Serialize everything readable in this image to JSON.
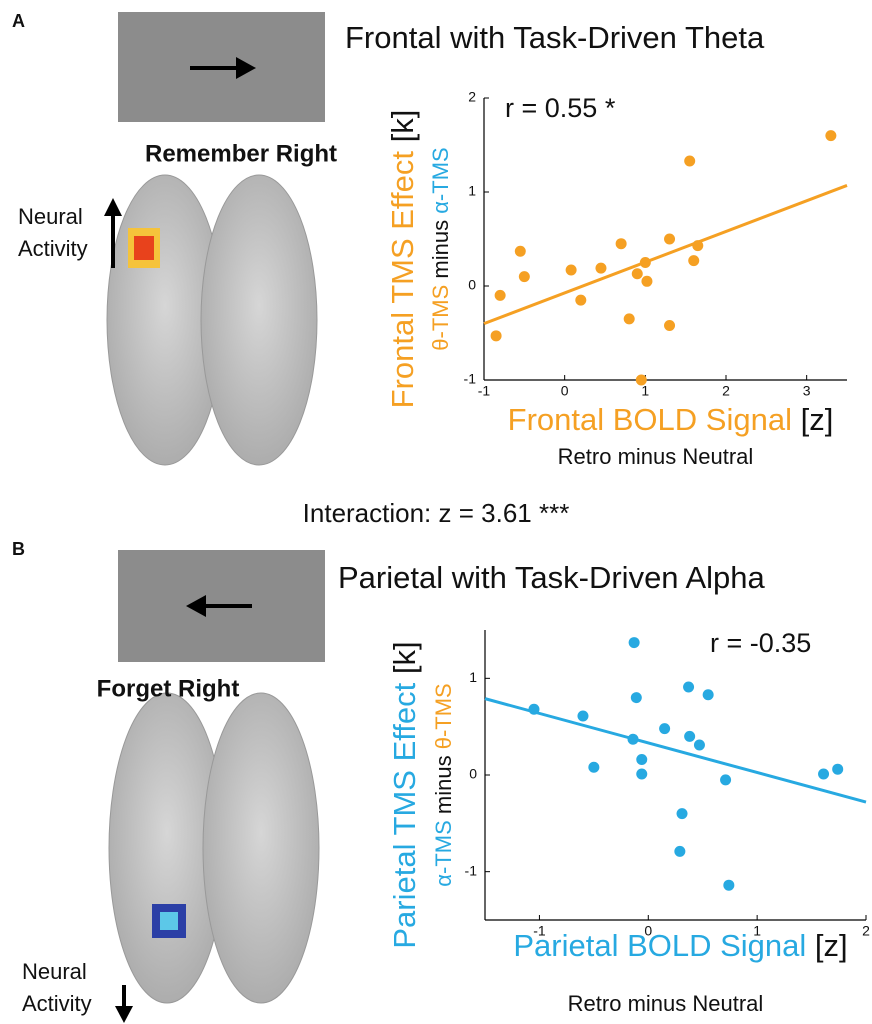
{
  "figure": {
    "interaction": "Interaction: z = 3.61 ***",
    "panels": [
      {
        "label": "A",
        "cue": "Remember Right",
        "cue_color": "#f5a023",
        "activity": [
          "Neural",
          "Activity"
        ]
      },
      {
        "label": "B",
        "cue": "Forget Right",
        "cue_color": "#27a9e1",
        "activity": [
          "Neural",
          "Activity"
        ]
      }
    ]
  },
  "chart_data": [
    {
      "type": "scatter",
      "title": "Frontal with Task-Driven Theta",
      "annotation": "r = 0.55 *",
      "color": "#f5a023",
      "x": [
        -0.85,
        -0.8,
        -0.55,
        -0.5,
        0.08,
        0.2,
        0.45,
        0.7,
        0.9,
        0.95,
        1.0,
        1.02,
        0.8,
        1.3,
        1.3,
        1.55,
        1.6,
        1.65,
        3.3
      ],
      "values": [
        -0.53,
        -0.1,
        0.37,
        0.1,
        0.17,
        -0.15,
        0.19,
        0.45,
        0.13,
        -1.0,
        0.25,
        0.05,
        -0.35,
        0.5,
        -0.42,
        1.33,
        0.27,
        0.43,
        1.6
      ],
      "fit": {
        "x": [
          -1,
          3.5
        ],
        "y": [
          -0.4,
          1.07
        ]
      },
      "xlim": [
        -1,
        3.5
      ],
      "ylim": [
        -1,
        2
      ],
      "xticks": [
        -1,
        0,
        1,
        2,
        3
      ],
      "yticks": [
        -1,
        0,
        1,
        2
      ],
      "xlabel": [
        {
          "text": "Frontal BOLD Signal",
          "color": "#f5a023"
        },
        {
          "text": "[z]",
          "color": "#111111"
        }
      ],
      "xlabel_sub": "Retro minus Neutral",
      "ylabel": [
        {
          "text": "Frontal TMS Effect",
          "color": "#f5a023"
        },
        {
          "text": "[k]",
          "color": "#111111"
        }
      ],
      "ylabel_sub": [
        {
          "text": "θ-TMS",
          "color": "#f5a023"
        },
        {
          "text": "minus",
          "color": "#111111"
        },
        {
          "text": "α-TMS",
          "color": "#27a9e1"
        }
      ]
    },
    {
      "type": "scatter",
      "title": "Parietal with Task-Driven Alpha",
      "annotation": "r = -0.35",
      "color": "#27a9e1",
      "x": [
        -1.05,
        -0.6,
        -0.5,
        -0.13,
        -0.11,
        -0.14,
        -0.06,
        -0.06,
        0.15,
        0.37,
        0.38,
        0.47,
        0.55,
        0.31,
        0.29,
        0.71,
        0.74,
        1.61,
        1.74
      ],
      "values": [
        0.68,
        0.61,
        0.08,
        1.37,
        0.8,
        0.37,
        0.16,
        0.01,
        0.48,
        0.91,
        0.4,
        0.31,
        0.83,
        -0.4,
        -0.79,
        -0.05,
        -1.14,
        0.01,
        0.06
      ],
      "fit": {
        "x": [
          -1.5,
          2
        ],
        "y": [
          0.79,
          -0.28
        ]
      },
      "xlim": [
        -1.5,
        2
      ],
      "ylim": [
        -1.5,
        1.5
      ],
      "xticks": [
        -1,
        0,
        1,
        2
      ],
      "yticks": [
        -1,
        0,
        1
      ],
      "xlabel": [
        {
          "text": "Parietal BOLD Signal",
          "color": "#27a9e1"
        },
        {
          "text": "[z]",
          "color": "#111111"
        }
      ],
      "xlabel_sub": "Retro minus Neutral",
      "ylabel": [
        {
          "text": "Parietal TMS Effect",
          "color": "#27a9e1"
        },
        {
          "text": "[k]",
          "color": "#111111"
        }
      ],
      "ylabel_sub": [
        {
          "text": "α-TMS",
          "color": "#27a9e1"
        },
        {
          "text": "minus",
          "color": "#111111"
        },
        {
          "text": "θ-TMS",
          "color": "#f5a023"
        }
      ]
    }
  ]
}
